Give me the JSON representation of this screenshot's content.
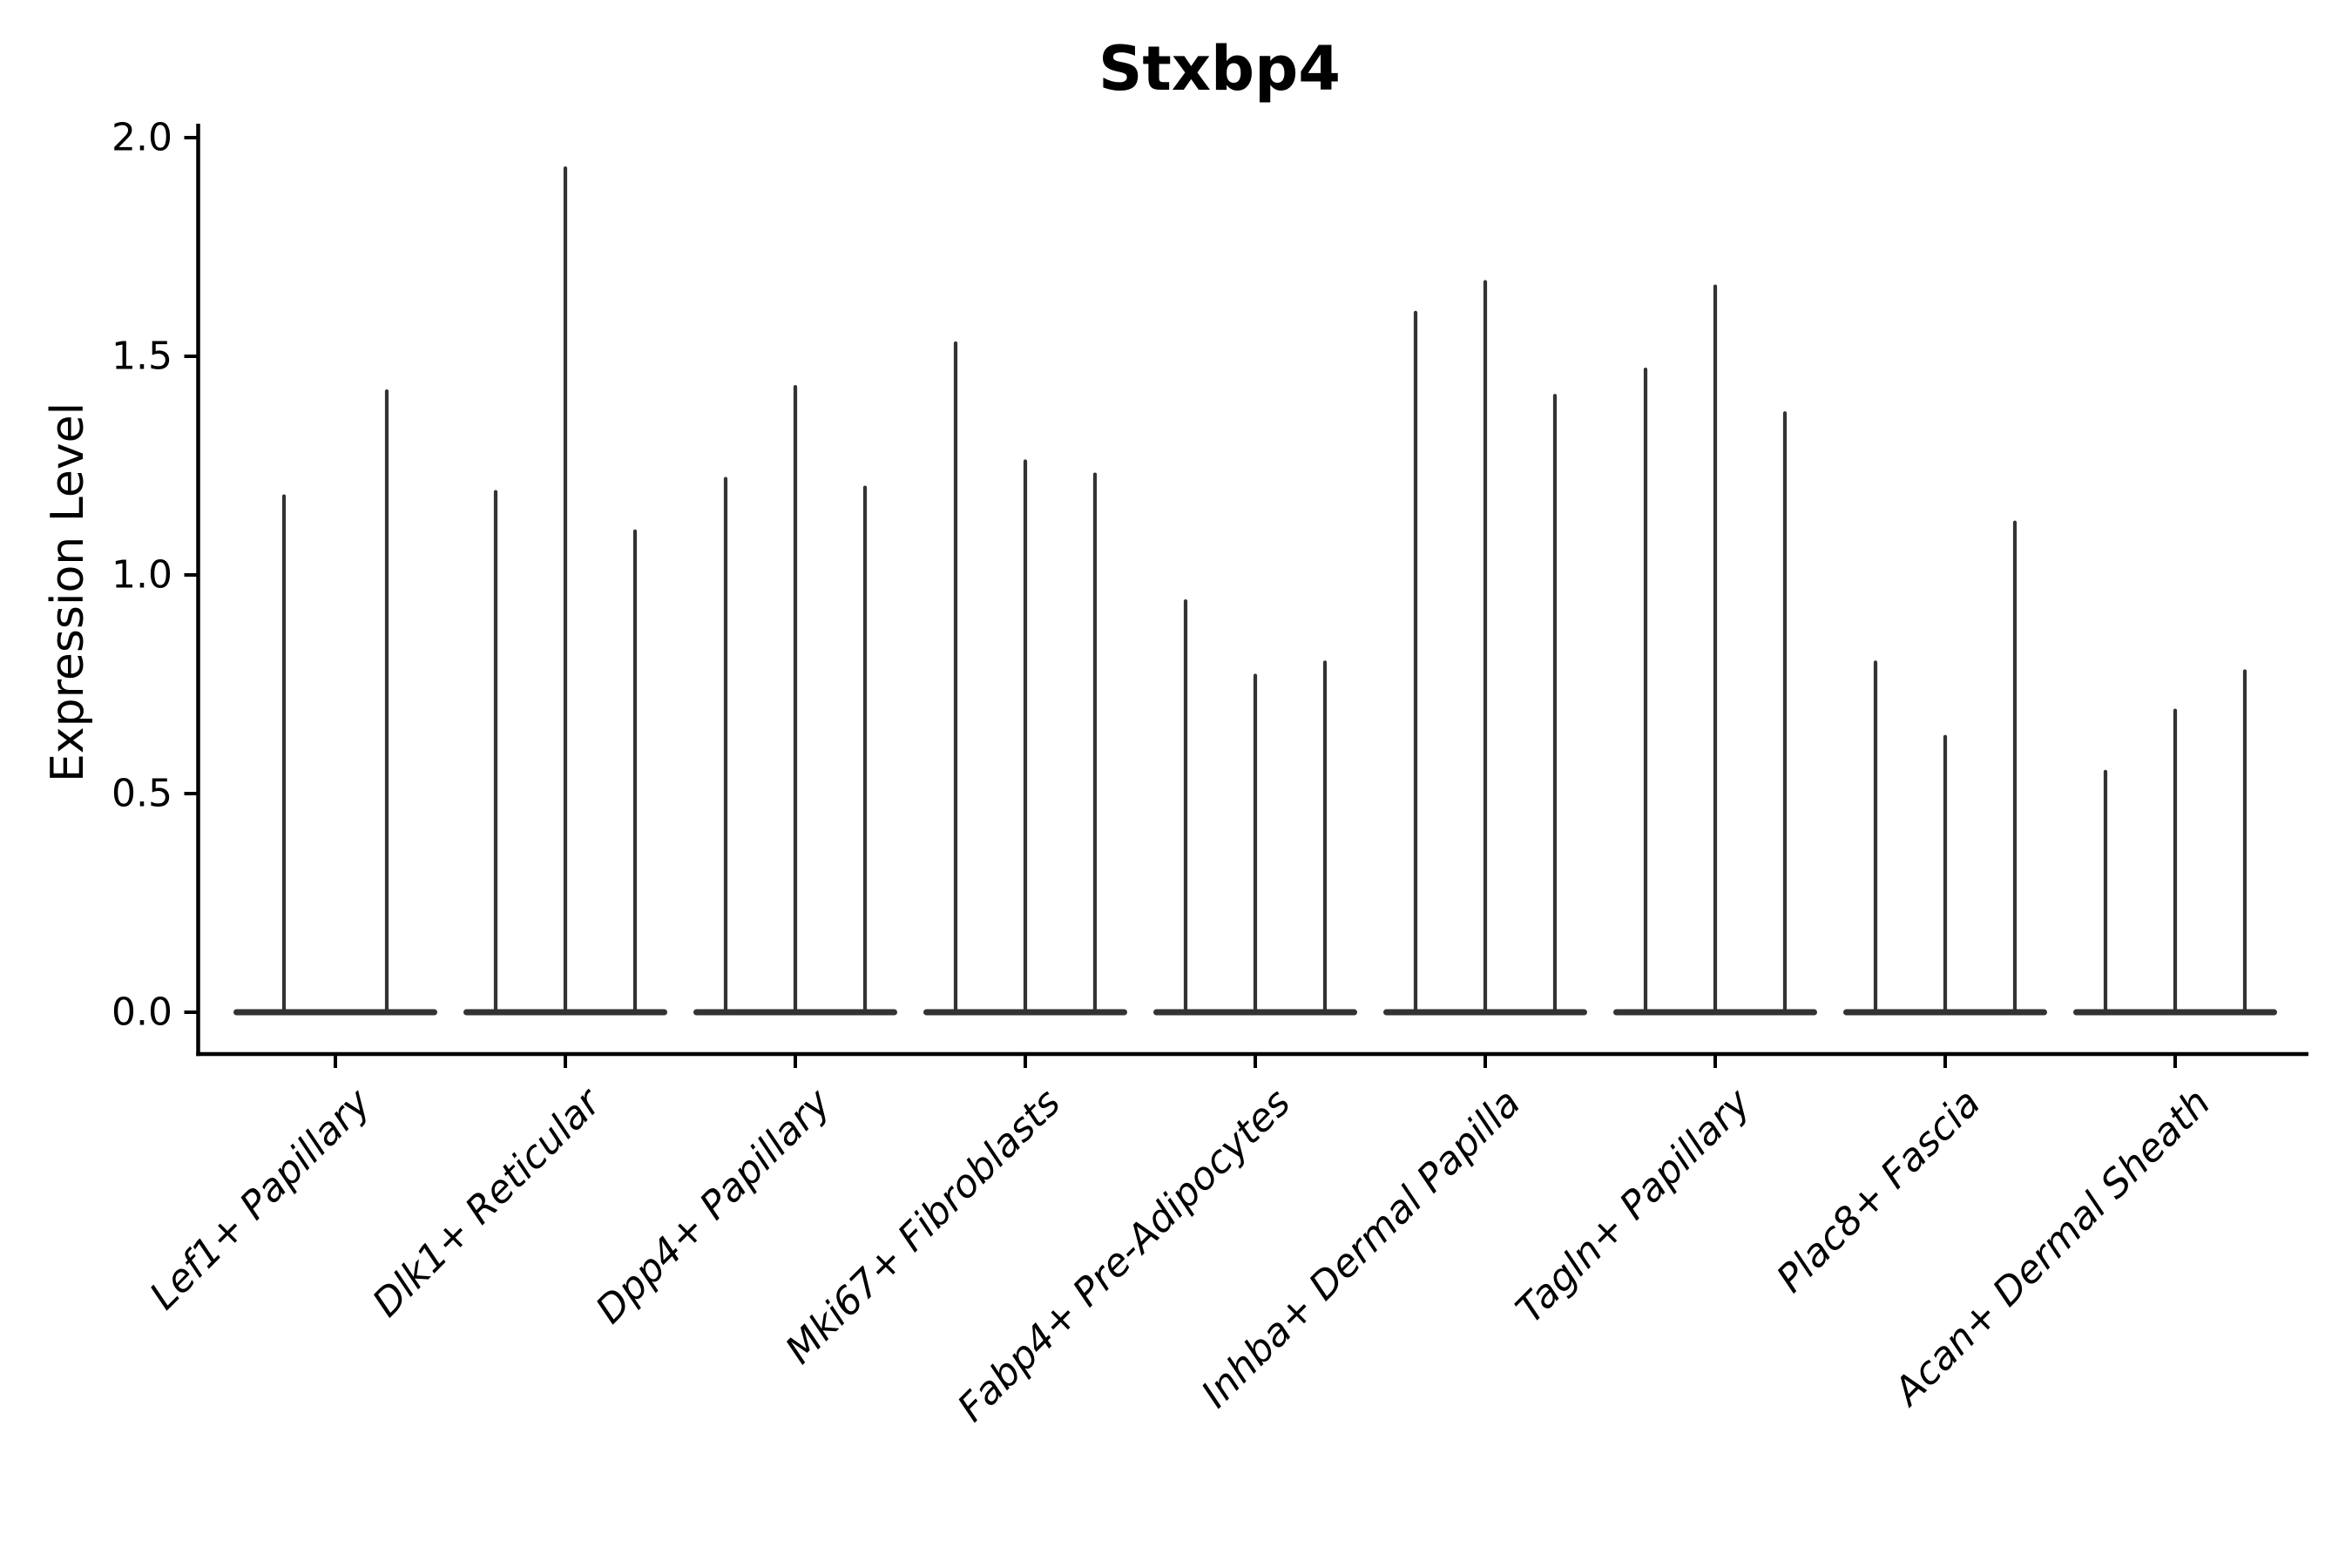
{
  "page": {
    "background": "#ffffff"
  },
  "chart_data": {
    "type": "violin",
    "title": "Stxbp4",
    "xlabel": "",
    "ylabel": "Expression Level",
    "ylim": [
      0.0,
      2.0
    ],
    "yticks": [
      0.0,
      0.5,
      1.0,
      1.5,
      2.0
    ],
    "ytick_labels": [
      "0.0",
      "0.5",
      "1.0",
      "1.5",
      "2.0"
    ],
    "grid": false,
    "legend_position": "none",
    "x_tick_rotation_deg": 45,
    "categories": [
      "Lef1+ Papillary",
      "Dlk1+ Reticular",
      "Dpp4+ Papillary",
      "Mki67+ Fibroblasts",
      "Fabp4+ Pre-Adipocytes",
      "Inhba+ Dermal Papilla",
      "Tagln+ Papillary",
      "Plac8+ Fascia",
      "Acan+ Dermal Sheath"
    ],
    "violin_peaks": [
      [
        1.18,
        1.42
      ],
      [
        1.19,
        1.93,
        1.1
      ],
      [
        1.22,
        1.43,
        1.2
      ],
      [
        1.53,
        1.26,
        1.23
      ],
      [
        0.94,
        0.77,
        0.8
      ],
      [
        1.6,
        1.67,
        1.41
      ],
      [
        1.47,
        1.66,
        1.37
      ],
      [
        0.8,
        0.63,
        1.12
      ],
      [
        0.55,
        0.69,
        0.78
      ]
    ],
    "colors": {
      "violin": "#333333",
      "axis": "#000000",
      "text": "#000000",
      "background": "#ffffff"
    }
  }
}
